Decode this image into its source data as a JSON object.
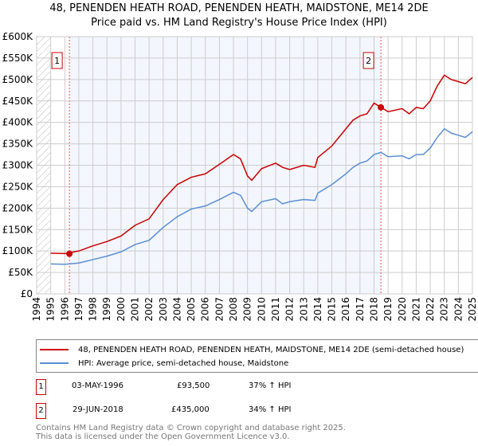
{
  "chart_data": {
    "type": "line",
    "title": "48, PENENDEN HEATH ROAD, PENENDEN HEATH, MAIDSTONE, ME14 2DE",
    "subtitle": "Price paid vs. HM Land Registry's House Price Index (HPI)",
    "xlim": [
      1994,
      2025
    ],
    "ylim": [
      0,
      600000
    ],
    "y_ticks": [
      0,
      50000,
      100000,
      150000,
      200000,
      250000,
      300000,
      350000,
      400000,
      450000,
      500000,
      550000,
      600000
    ],
    "y_tick_labels": [
      "£0",
      "£50K",
      "£100K",
      "£150K",
      "£200K",
      "£250K",
      "£300K",
      "£350K",
      "£400K",
      "£450K",
      "£500K",
      "£550K",
      "£600K"
    ],
    "x_ticks": [
      "1994",
      "1995",
      "1996",
      "1997",
      "1998",
      "1999",
      "2000",
      "2001",
      "2002",
      "2003",
      "2004",
      "2005",
      "2006",
      "2007",
      "2008",
      "2009",
      "2010",
      "2011",
      "2012",
      "2013",
      "2014",
      "2015",
      "2016",
      "2017",
      "2018",
      "2019",
      "2020",
      "2021",
      "2022",
      "2023",
      "2024",
      "2025"
    ],
    "grid": true,
    "x": [
      1995,
      1996,
      1997,
      1998,
      1999,
      2000,
      2001,
      2002,
      2003,
      2004,
      2005,
      2006,
      2007,
      2008,
      2008.5,
      2009,
      2009.3,
      2010,
      2011,
      2011.5,
      2012,
      2013,
      2013.8,
      2014,
      2015,
      2016,
      2016.5,
      2017,
      2017.5,
      2018,
      2018.5,
      2019,
      2020,
      2020.5,
      2021,
      2021.5,
      2022,
      2022.5,
      2023,
      2023.5,
      2024,
      2024.5,
      2025
    ],
    "series": [
      {
        "name": "48, PENENDEN HEATH ROAD, PENENDEN HEATH, MAIDSTONE, ME14 2DE (semi-detached house)",
        "color": "#cc0000",
        "values": [
          95000,
          94000,
          100000,
          112000,
          122000,
          135000,
          160000,
          175000,
          220000,
          255000,
          272000,
          280000,
          302000,
          325000,
          315000,
          275000,
          265000,
          292000,
          305000,
          295000,
          290000,
          300000,
          295000,
          318000,
          345000,
          385000,
          405000,
          415000,
          420000,
          445000,
          435000,
          425000,
          432000,
          420000,
          435000,
          432000,
          450000,
          485000,
          510000,
          500000,
          495000,
          490000,
          505000
        ]
      },
      {
        "name": "HPI: Average price, semi-detached house, Maidstone",
        "color": "#5b8fd4",
        "values": [
          70000,
          69000,
          72000,
          80000,
          88000,
          98000,
          115000,
          125000,
          155000,
          180000,
          198000,
          205000,
          220000,
          237000,
          230000,
          200000,
          192000,
          215000,
          222000,
          210000,
          215000,
          220000,
          218000,
          235000,
          255000,
          280000,
          295000,
          305000,
          310000,
          325000,
          330000,
          320000,
          322000,
          315000,
          325000,
          325000,
          340000,
          365000,
          385000,
          375000,
          370000,
          365000,
          378000
        ]
      }
    ],
    "sales": [
      {
        "id": "1",
        "x": 1996.33,
        "price": 93500,
        "date": "03-MAY-1996",
        "price_label": "£93,500",
        "hpi": "37% ↑ HPI"
      },
      {
        "id": "2",
        "x": 2018.49,
        "price": 435000,
        "date": "29-JUN-2018",
        "price_label": "£435,000",
        "hpi": "34% ↑ HPI"
      }
    ]
  },
  "title_line1": "48, PENENDEN HEATH ROAD, PENENDEN HEATH, MAIDSTONE, ME14 2DE",
  "title_line2": "Price paid vs. HM Land Registry's House Price Index (HPI)",
  "legend": {
    "red": "48, PENENDEN HEATH ROAD, PENENDEN HEATH, MAIDSTONE, ME14 2DE (semi-detached house)",
    "blue": "HPI: Average price, semi-detached house, Maidstone"
  },
  "footer": {
    "line1": "Contains HM Land Registry data © Crown copyright and database right 2025.",
    "line2": "This data is licensed under the Open Government Licence v3.0."
  }
}
